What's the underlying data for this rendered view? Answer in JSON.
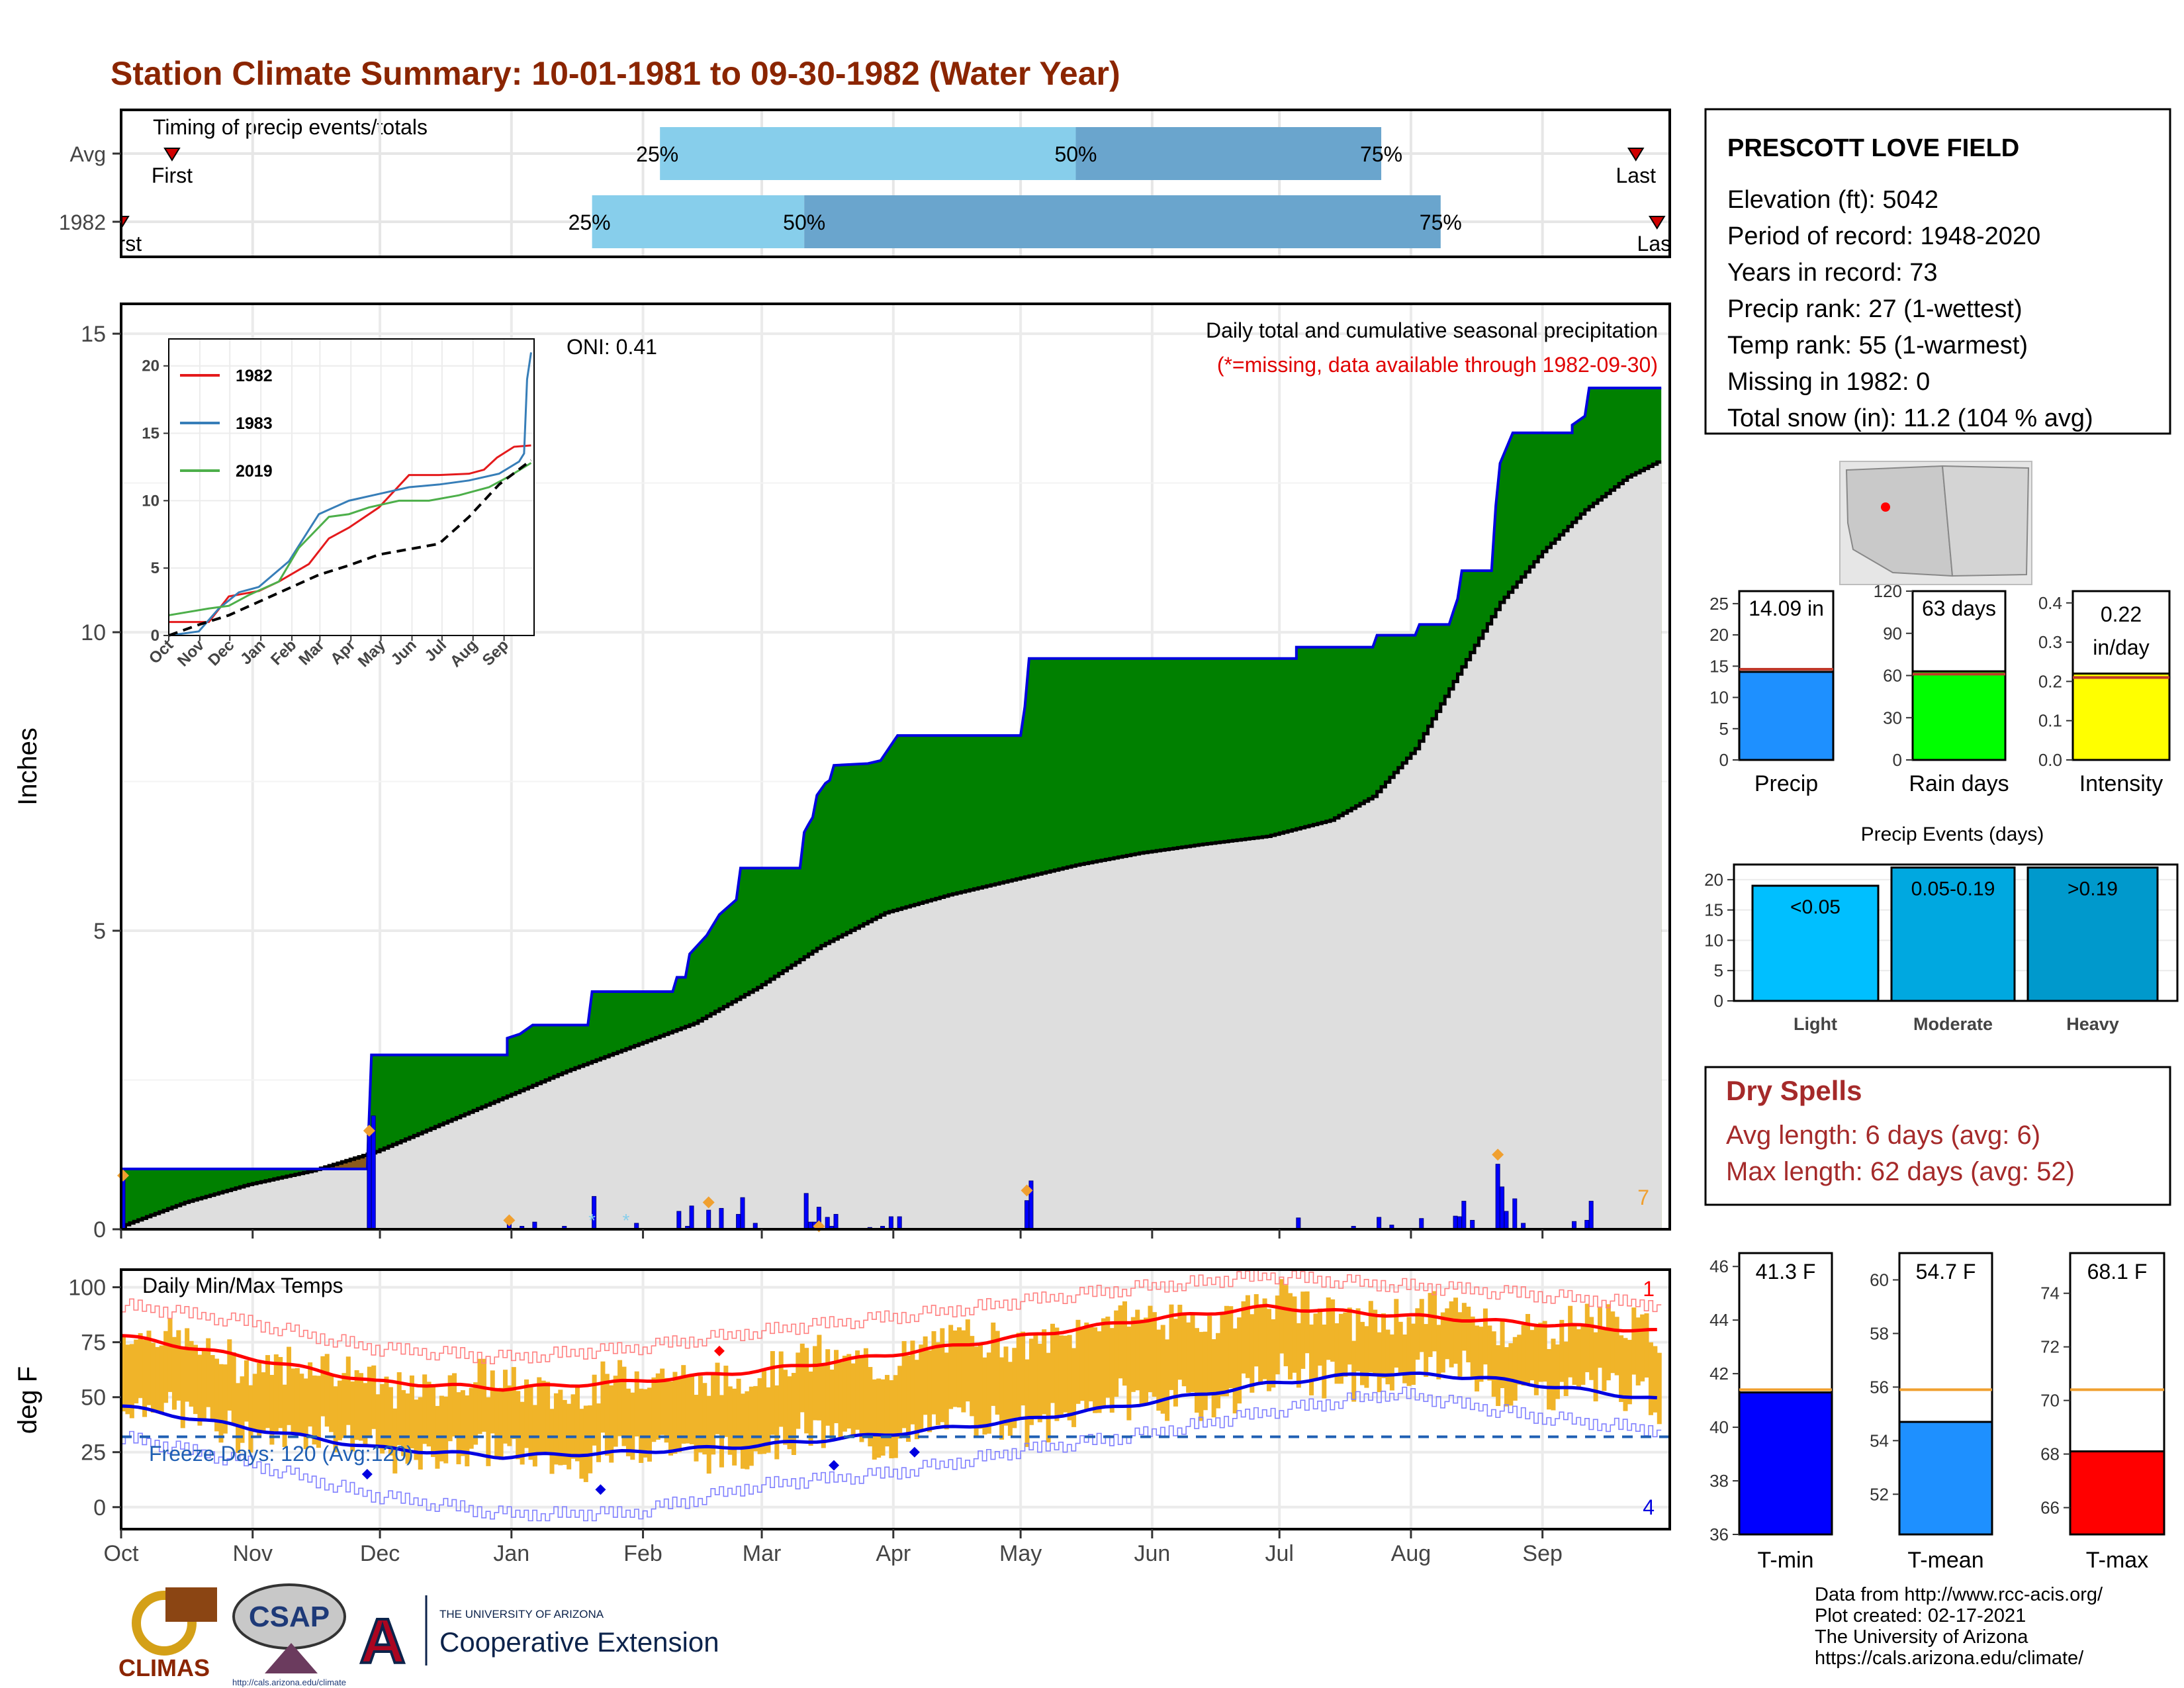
{
  "page": {
    "title": "Station Climate Summary: 10-01-1981 to 09-30-1982 (Water Year)",
    "colors": {
      "title": "#8b2500",
      "precip_cum": "#008000",
      "precip_line": "#0000e0",
      "avg_cum": "#dedede",
      "temp_bar": "#f0b429",
      "tmax_avg": "#ff0000",
      "tmin_avg": "#0000e0",
      "dry_spells": "#a52a2a"
    }
  },
  "months": [
    "Oct",
    "Nov",
    "Dec",
    "Jan",
    "Feb",
    "Mar",
    "Apr",
    "May",
    "Jun",
    "Jul",
    "Aug",
    "Sep"
  ],
  "timing_panel": {
    "label": "Timing of precip events/totals",
    "rows": [
      {
        "name": "Avg",
        "first_label": "First",
        "last_label": "Last",
        "first_day": 12,
        "last_day": 357,
        "p25_day": 127,
        "p50_day": 225,
        "p75_day": 297
      },
      {
        "name": "1982",
        "first_label": "First",
        "last_label": "Last",
        "first_day": 0,
        "last_day": 362,
        "p25_day": 111,
        "p50_day": 161,
        "p75_day": 311
      }
    ],
    "p25_label": "25%",
    "p50_label": "50%",
    "p75_label": "75%"
  },
  "chart_data": [
    {
      "type": "area",
      "title": "Daily total and cumulative seasonal precipitation",
      "subtitle": "(*=missing, data available through 1982-09-30)",
      "ylabel": "Inches",
      "ylim": [
        0,
        15.5
      ],
      "yticks": [
        0,
        5,
        10,
        15
      ],
      "oni_label": "ONI: 0.41",
      "right_count_label": "7",
      "x_unit": "day of water year",
      "cumulative_1982": [
        [
          0,
          1.01
        ],
        [
          58,
          1.01
        ],
        [
          59,
          2.92
        ],
        [
          91,
          2.92
        ],
        [
          91,
          3.2
        ],
        [
          94,
          3.27
        ],
        [
          97,
          3.42
        ],
        [
          110,
          3.42
        ],
        [
          111,
          3.98
        ],
        [
          130,
          3.98
        ],
        [
          131,
          4.22
        ],
        [
          133,
          4.22
        ],
        [
          134,
          4.61
        ],
        [
          138,
          4.92
        ],
        [
          141,
          5.27
        ],
        [
          145,
          5.52
        ],
        [
          146,
          6.05
        ],
        [
          160,
          6.05
        ],
        [
          161,
          6.65
        ],
        [
          162,
          6.78
        ],
        [
          163,
          6.9
        ],
        [
          164,
          7.27
        ],
        [
          166,
          7.47
        ],
        [
          167,
          7.52
        ],
        [
          168,
          7.77
        ],
        [
          176,
          7.8
        ],
        [
          179,
          7.85
        ],
        [
          181,
          8.06
        ],
        [
          183,
          8.27
        ],
        [
          212,
          8.27
        ],
        [
          213,
          8.75
        ],
        [
          214,
          9.56
        ],
        [
          277,
          9.56
        ],
        [
          277,
          9.75
        ],
        [
          295,
          9.75
        ],
        [
          296,
          9.95
        ],
        [
          305,
          9.95
        ],
        [
          306,
          10.13
        ],
        [
          313,
          10.13
        ],
        [
          314,
          10.35
        ],
        [
          315,
          10.56
        ],
        [
          316,
          11.03
        ],
        [
          323,
          11.03
        ],
        [
          324,
          12.12
        ],
        [
          325,
          12.83
        ],
        [
          328,
          13.34
        ],
        [
          342,
          13.34
        ],
        [
          342,
          13.47
        ],
        [
          345,
          13.62
        ],
        [
          346,
          14.09
        ],
        [
          362,
          14.09
        ]
      ],
      "average_cumulative": [
        [
          0,
          0.05
        ],
        [
          15,
          0.45
        ],
        [
          30,
          0.75
        ],
        [
          45,
          0.98
        ],
        [
          60,
          1.3
        ],
        [
          75,
          1.75
        ],
        [
          90,
          2.2
        ],
        [
          105,
          2.65
        ],
        [
          120,
          3.05
        ],
        [
          135,
          3.45
        ],
        [
          150,
          4.05
        ],
        [
          165,
          4.75
        ],
        [
          180,
          5.3
        ],
        [
          195,
          5.6
        ],
        [
          210,
          5.85
        ],
        [
          225,
          6.1
        ],
        [
          240,
          6.3
        ],
        [
          255,
          6.45
        ],
        [
          270,
          6.58
        ],
        [
          285,
          6.85
        ],
        [
          295,
          7.25
        ],
        [
          305,
          8.05
        ],
        [
          315,
          9.3
        ],
        [
          325,
          10.5
        ],
        [
          335,
          11.35
        ],
        [
          345,
          12.05
        ],
        [
          355,
          12.6
        ],
        [
          362,
          12.85
        ]
      ],
      "daily": [
        [
          0,
          0.95
        ],
        [
          58,
          1.7
        ],
        [
          59,
          1.9
        ],
        [
          91,
          0.15
        ],
        [
          94,
          0.05
        ],
        [
          97,
          0.12
        ],
        [
          104,
          0.05
        ],
        [
          111,
          0.55
        ],
        [
          121,
          0.1
        ],
        [
          131,
          0.3
        ],
        [
          133,
          0.05
        ],
        [
          134,
          0.39
        ],
        [
          138,
          0.32
        ],
        [
          141,
          0.35
        ],
        [
          145,
          0.25
        ],
        [
          146,
          0.53
        ],
        [
          149,
          0.1
        ],
        [
          161,
          0.6
        ],
        [
          162,
          0.12
        ],
        [
          163,
          0.12
        ],
        [
          164,
          0.37
        ],
        [
          166,
          0.2
        ],
        [
          167,
          0.05
        ],
        [
          168,
          0.25
        ],
        [
          176,
          0.03
        ],
        [
          179,
          0.05
        ],
        [
          181,
          0.21
        ],
        [
          183,
          0.21
        ],
        [
          213,
          0.48
        ],
        [
          214,
          0.81
        ],
        [
          277,
          0.19
        ],
        [
          290,
          0.05
        ],
        [
          296,
          0.2
        ],
        [
          299,
          0.07
        ],
        [
          306,
          0.18
        ],
        [
          314,
          0.22
        ],
        [
          315,
          0.21
        ],
        [
          316,
          0.47
        ],
        [
          318,
          0.15
        ],
        [
          324,
          1.09
        ],
        [
          325,
          0.71
        ],
        [
          326,
          0.3
        ],
        [
          328,
          0.51
        ],
        [
          330,
          0.1
        ],
        [
          342,
          0.13
        ],
        [
          345,
          0.15
        ],
        [
          346,
          0.47
        ]
      ],
      "missing_markers": [
        111,
        119
      ],
      "event_markers": [
        [
          0,
          0.9
        ],
        [
          58,
          1.65
        ],
        [
          91,
          0.15
        ],
        [
          138,
          0.45
        ],
        [
          164,
          0.05
        ],
        [
          213,
          0.65
        ],
        [
          324,
          1.25
        ]
      ]
    },
    {
      "type": "line",
      "title": "",
      "xticks": [
        "Oct",
        "Nov",
        "Dec",
        "Jan",
        "Feb",
        "Mar",
        "Apr",
        "May",
        "Jun",
        "Jul",
        "Aug",
        "Sep"
      ],
      "ylim": [
        0,
        22
      ],
      "yticks": [
        0,
        5,
        10,
        15,
        20
      ],
      "series": [
        {
          "name": "1982",
          "color": "#e41a1c",
          "points": [
            [
              0,
              1.0
            ],
            [
              40,
              1.0
            ],
            [
              60,
              2.9
            ],
            [
              90,
              3.3
            ],
            [
              110,
              4.0
            ],
            [
              140,
              5.3
            ],
            [
              160,
              7.2
            ],
            [
              180,
              8.0
            ],
            [
              210,
              9.5
            ],
            [
              240,
              11.9
            ],
            [
              270,
              11.9
            ],
            [
              300,
              12.0
            ],
            [
              315,
              12.3
            ],
            [
              328,
              13.2
            ],
            [
              345,
              14.0
            ],
            [
              362,
              14.1
            ]
          ]
        },
        {
          "name": "1983",
          "color": "#377eb8",
          "points": [
            [
              0,
              0.0
            ],
            [
              30,
              0.3
            ],
            [
              50,
              2.0
            ],
            [
              70,
              3.2
            ],
            [
              90,
              3.6
            ],
            [
              120,
              5.5
            ],
            [
              150,
              9.0
            ],
            [
              180,
              10.0
            ],
            [
              210,
              10.5
            ],
            [
              240,
              11.0
            ],
            [
              270,
              11.2
            ],
            [
              300,
              11.5
            ],
            [
              330,
              12.0
            ],
            [
              350,
              12.9
            ],
            [
              355,
              13.5
            ],
            [
              358,
              19.0
            ],
            [
              362,
              21.0
            ]
          ]
        },
        {
          "name": "2019",
          "color": "#4daf4a",
          "points": [
            [
              0,
              1.5
            ],
            [
              40,
              2.0
            ],
            [
              60,
              2.2
            ],
            [
              80,
              3.0
            ],
            [
              110,
              4.0
            ],
            [
              130,
              6.5
            ],
            [
              160,
              8.8
            ],
            [
              180,
              9.0
            ],
            [
              200,
              9.5
            ],
            [
              230,
              10.0
            ],
            [
              260,
              10.0
            ],
            [
              290,
              10.4
            ],
            [
              320,
              11.0
            ],
            [
              340,
              11.8
            ],
            [
              362,
              12.8
            ]
          ]
        },
        {
          "name": "Average",
          "color": "#000000",
          "dashed": true,
          "points": [
            [
              0,
              0.0
            ],
            [
              30,
              0.8
            ],
            [
              60,
              1.5
            ],
            [
              90,
              2.5
            ],
            [
              120,
              3.5
            ],
            [
              150,
              4.5
            ],
            [
              180,
              5.2
            ],
            [
              210,
              6.0
            ],
            [
              240,
              6.4
            ],
            [
              270,
              6.8
            ],
            [
              300,
              8.8
            ],
            [
              330,
              11.2
            ],
            [
              362,
              13.0
            ]
          ]
        }
      ]
    },
    {
      "type": "bar",
      "title": "Daily Min/Max Temps",
      "ylabel": "deg F",
      "ylim": [
        -10,
        108
      ],
      "yticks": [
        0,
        25,
        50,
        75,
        100
      ],
      "freeze_label": "Freeze Days: 120 (Avg:120)",
      "freeze_line": 32,
      "record_high_count": "1",
      "record_low_count": "4",
      "normal_max": [
        [
          0,
          78
        ],
        [
          30,
          68
        ],
        [
          60,
          57
        ],
        [
          90,
          54
        ],
        [
          120,
          57
        ],
        [
          150,
          62
        ],
        [
          180,
          69
        ],
        [
          210,
          77
        ],
        [
          240,
          85
        ],
        [
          270,
          91
        ],
        [
          295,
          88
        ],
        [
          320,
          85
        ],
        [
          362,
          80
        ]
      ],
      "normal_min": [
        [
          0,
          46
        ],
        [
          30,
          36
        ],
        [
          60,
          27
        ],
        [
          90,
          23
        ],
        [
          120,
          25
        ],
        [
          150,
          28
        ],
        [
          180,
          33
        ],
        [
          210,
          39
        ],
        [
          240,
          47
        ],
        [
          270,
          56
        ],
        [
          295,
          61
        ],
        [
          320,
          59
        ],
        [
          345,
          53
        ],
        [
          362,
          49
        ]
      ],
      "record_high": [
        [
          0,
          92
        ],
        [
          30,
          84
        ],
        [
          60,
          72
        ],
        [
          90,
          68
        ],
        [
          120,
          72
        ],
        [
          150,
          80
        ],
        [
          180,
          86
        ],
        [
          210,
          93
        ],
        [
          240,
          100
        ],
        [
          270,
          105
        ],
        [
          300,
          101
        ],
        [
          330,
          97
        ],
        [
          362,
          92
        ]
      ],
      "record_low": [
        [
          0,
          32
        ],
        [
          30,
          20
        ],
        [
          60,
          5
        ],
        [
          90,
          -3
        ],
        [
          120,
          -3
        ],
        [
          150,
          10
        ],
        [
          180,
          15
        ],
        [
          210,
          25
        ],
        [
          240,
          33
        ],
        [
          270,
          43
        ],
        [
          300,
          52
        ],
        [
          330,
          42
        ],
        [
          362,
          35
        ]
      ],
      "diamonds": [
        [
          58,
          15
        ],
        [
          113,
          8
        ],
        [
          141,
          71
        ],
        [
          168,
          19
        ],
        [
          187,
          25
        ]
      ]
    },
    {
      "type": "bar",
      "title": "",
      "categories": [
        "Precip",
        "Rain days",
        "Intensity"
      ],
      "values": [
        14.09,
        63,
        0.22
      ],
      "averages": [
        14.5,
        61,
        0.21
      ],
      "labels": [
        "14.09 in",
        "63 days",
        "0.22 in/day"
      ],
      "ylims": [
        [
          0,
          27
        ],
        [
          0,
          120
        ],
        [
          0,
          0.43
        ]
      ],
      "yticks": [
        [
          0,
          5,
          10,
          15,
          20,
          25
        ],
        [
          0,
          30,
          60,
          90,
          120
        ],
        [
          0.0,
          0.1,
          0.2,
          0.3,
          0.4
        ]
      ],
      "colors": [
        "#1e90ff",
        "#00ff00",
        "#ffff00"
      ]
    },
    {
      "type": "bar",
      "title": "Precip Events (days)",
      "categories": [
        "Light",
        "Moderate",
        "Heavy"
      ],
      "values": [
        19,
        22,
        22
      ],
      "labels": [
        "<0.05",
        "0.05-0.19",
        ">0.19"
      ],
      "ylim": [
        0,
        22.5
      ],
      "yticks": [
        0,
        5,
        10,
        15,
        20
      ],
      "colors": [
        "#00bfff",
        "#00a8e0",
        "#0099cc"
      ]
    },
    {
      "type": "bar",
      "title": "",
      "categories": [
        "T-min",
        "T-mean",
        "T-max"
      ],
      "values": [
        41.3,
        54.7,
        68.1
      ],
      "averages": [
        41.4,
        55.9,
        70.4
      ],
      "labels": [
        "41.3 F",
        "54.7 F",
        "68.1 F"
      ],
      "ylims": [
        [
          36,
          46.5
        ],
        [
          50.5,
          61
        ],
        [
          65,
          75.5
        ]
      ],
      "yticks": [
        [
          36,
          38,
          40,
          42,
          44,
          46
        ],
        [
          52,
          54,
          56,
          58,
          60
        ],
        [
          66,
          68,
          70,
          72,
          74
        ]
      ],
      "colors": [
        "#0000ff",
        "#1e90ff",
        "#ff0000"
      ]
    }
  ],
  "station": {
    "name": "PRESCOTT LOVE FIELD",
    "lines": [
      "Elevation (ft): 5042",
      "Period of record: 1948-2020",
      "Years in record: 73",
      "Precip rank: 27 (1-wettest)",
      "Temp rank: 55 (1-warmest)",
      "Missing in 1982: 0",
      "Total snow (in): 11.2 (104 % avg)"
    ]
  },
  "dry_spells": {
    "title": "Dry Spells",
    "avg": "Avg length: 6 days (avg: 6)",
    "max": "Max length: 62 days (avg: 52)"
  },
  "footer": {
    "lines": [
      "Data from http://www.rcc-acis.org/",
      "Plot created: 02-17-2021",
      "The University of Arizona",
      "https://cals.arizona.edu/climate/"
    ],
    "logos": {
      "climas": "CLIMAS",
      "csap": "CSAP",
      "csap_url": "http://cals.arizona.edu/climate",
      "ua_small": "THE UNIVERSITY OF ARIZONA",
      "ua_main": "Cooperative Extension"
    }
  }
}
